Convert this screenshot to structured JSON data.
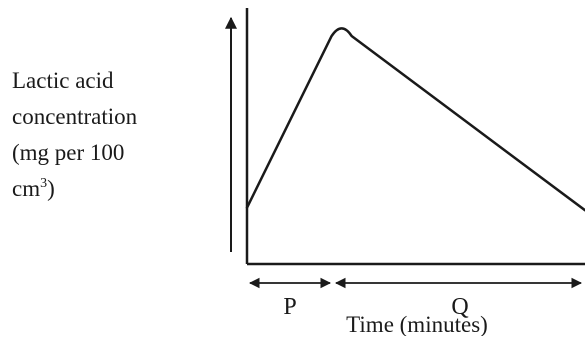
{
  "chart_data": {
    "type": "line",
    "title": "",
    "ylabel": {
      "line1": "Lactic acid",
      "line2": "concentration",
      "line3": "(mg per 100",
      "line4_base": "cm",
      "line4_sup": "3",
      "line4_tail": ")"
    },
    "xlabel": "Time (minutes)",
    "periods": [
      "P",
      "Q"
    ],
    "series": [
      {
        "values_description_free": true,
        "points": [
          {
            "x": 0,
            "y": 0.22
          },
          {
            "x": 0.25,
            "y": 0.89
          },
          {
            "x": 0.28,
            "y": 0.92
          },
          {
            "x": 0.31,
            "y": 0.89
          },
          {
            "x": 1.0,
            "y": 0.21
          }
        ]
      }
    ],
    "xlim": [
      0,
      1
    ],
    "ylim": [
      0,
      1
    ],
    "grid": false,
    "line_color": "#1a1a1a"
  }
}
